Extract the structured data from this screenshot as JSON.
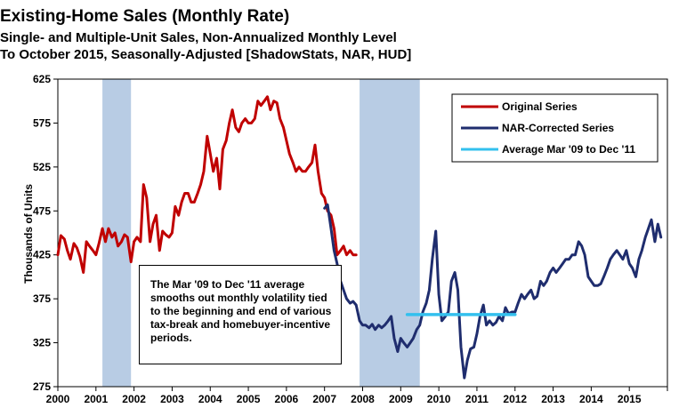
{
  "chart_data": {
    "type": "line",
    "title": "Existing-Home Sales (Monthly Rate)",
    "subtitle": [
      "Single- and Multiple-Unit Sales, Non-Annualized Monthly Level",
      "To October 2015, Seasonally-Adjusted [ShadowStats, NAR, HUD]"
    ],
    "xlabel": "",
    "ylabel": "Thousands of Units",
    "xlim": [
      2000,
      2016
    ],
    "ylim": [
      275,
      625
    ],
    "x_ticks": [
      "2000",
      "2001",
      "2002",
      "2003",
      "2004",
      "2005",
      "2006",
      "2007",
      "2008",
      "2009",
      "2010",
      "2011",
      "2012",
      "2013",
      "2014",
      "2015"
    ],
    "y_ticks": [
      "275",
      "325",
      "375",
      "425",
      "475",
      "525",
      "575",
      "625"
    ],
    "grid": false,
    "legend_position": "top-right",
    "recessions": [
      [
        2001.17,
        2001.92
      ],
      [
        2007.92,
        2009.5
      ]
    ],
    "series": [
      {
        "name": "Original Series",
        "color": "#c00000",
        "x": [
          2000.0,
          2000.08,
          2000.17,
          2000.25,
          2000.33,
          2000.42,
          2000.5,
          2000.58,
          2000.67,
          2000.75,
          2000.83,
          2000.92,
          2001.0,
          2001.08,
          2001.17,
          2001.25,
          2001.33,
          2001.42,
          2001.5,
          2001.58,
          2001.67,
          2001.75,
          2001.83,
          2001.92,
          2002.0,
          2002.08,
          2002.17,
          2002.25,
          2002.33,
          2002.42,
          2002.5,
          2002.58,
          2002.67,
          2002.75,
          2002.83,
          2002.92,
          2003.0,
          2003.08,
          2003.17,
          2003.25,
          2003.33,
          2003.42,
          2003.5,
          2003.58,
          2003.67,
          2003.75,
          2003.83,
          2003.92,
          2004.0,
          2004.08,
          2004.17,
          2004.25,
          2004.33,
          2004.42,
          2004.5,
          2004.58,
          2004.67,
          2004.75,
          2004.83,
          2004.92,
          2005.0,
          2005.08,
          2005.17,
          2005.25,
          2005.33,
          2005.42,
          2005.5,
          2005.58,
          2005.67,
          2005.75,
          2005.83,
          2005.92,
          2006.0,
          2006.08,
          2006.17,
          2006.25,
          2006.33,
          2006.42,
          2006.5,
          2006.58,
          2006.67,
          2006.75,
          2006.83,
          2006.92,
          2007.0,
          2007.08,
          2007.17,
          2007.25,
          2007.33,
          2007.42,
          2007.5,
          2007.58,
          2007.67,
          2007.75,
          2007.83
        ],
        "values": [
          425,
          447,
          443,
          430,
          420,
          438,
          433,
          423,
          405,
          440,
          435,
          430,
          425,
          438,
          455,
          440,
          455,
          445,
          450,
          435,
          440,
          448,
          445,
          417,
          440,
          445,
          440,
          505,
          490,
          440,
          460,
          470,
          430,
          452,
          448,
          445,
          450,
          480,
          470,
          485,
          495,
          495,
          485,
          485,
          495,
          505,
          520,
          560,
          540,
          520,
          535,
          500,
          545,
          555,
          575,
          590,
          570,
          565,
          575,
          580,
          575,
          575,
          580,
          600,
          595,
          600,
          605,
          590,
          600,
          598,
          580,
          570,
          555,
          540,
          530,
          520,
          525,
          520,
          520,
          525,
          530,
          550,
          520,
          495,
          490,
          475,
          470,
          455,
          425,
          430,
          435,
          425,
          430,
          425,
          425
        ]
      },
      {
        "name": "NAR-Corrected Series",
        "color": "#1f2d6e",
        "x": [
          2007.0,
          2007.08,
          2007.17,
          2007.25,
          2007.33,
          2007.42,
          2007.5,
          2007.58,
          2007.67,
          2007.75,
          2007.83,
          2007.92,
          2008.0,
          2008.08,
          2008.17,
          2008.25,
          2008.33,
          2008.42,
          2008.5,
          2008.58,
          2008.67,
          2008.75,
          2008.83,
          2008.92,
          2009.0,
          2009.08,
          2009.17,
          2009.25,
          2009.33,
          2009.42,
          2009.5,
          2009.58,
          2009.67,
          2009.75,
          2009.83,
          2009.92,
          2010.0,
          2010.08,
          2010.17,
          2010.25,
          2010.33,
          2010.42,
          2010.5,
          2010.58,
          2010.67,
          2010.75,
          2010.83,
          2010.92,
          2011.0,
          2011.08,
          2011.17,
          2011.25,
          2011.33,
          2011.42,
          2011.5,
          2011.58,
          2011.67,
          2011.75,
          2011.83,
          2011.92,
          2012.0,
          2012.08,
          2012.17,
          2012.25,
          2012.33,
          2012.42,
          2012.5,
          2012.58,
          2012.67,
          2012.75,
          2012.83,
          2012.92,
          2013.0,
          2013.08,
          2013.17,
          2013.25,
          2013.33,
          2013.42,
          2013.5,
          2013.58,
          2013.67,
          2013.75,
          2013.83,
          2013.92,
          2014.0,
          2014.08,
          2014.17,
          2014.25,
          2014.33,
          2014.42,
          2014.5,
          2014.58,
          2014.67,
          2014.75,
          2014.83,
          2014.92,
          2015.0,
          2015.08,
          2015.17,
          2015.25,
          2015.33,
          2015.42,
          2015.5,
          2015.58,
          2015.67,
          2015.75,
          2015.83
        ],
        "values": [
          478,
          482,
          455,
          430,
          415,
          395,
          385,
          375,
          370,
          372,
          368,
          350,
          345,
          345,
          342,
          346,
          340,
          345,
          342,
          345,
          350,
          355,
          330,
          315,
          330,
          325,
          320,
          325,
          330,
          340,
          345,
          360,
          370,
          385,
          420,
          452,
          380,
          350,
          355,
          360,
          395,
          405,
          385,
          320,
          285,
          305,
          318,
          320,
          335,
          355,
          368,
          345,
          350,
          345,
          348,
          355,
          350,
          365,
          358,
          360,
          360,
          370,
          380,
          375,
          380,
          385,
          375,
          378,
          395,
          390,
          395,
          405,
          410,
          405,
          410,
          415,
          420,
          420,
          425,
          425,
          440,
          435,
          425,
          400,
          395,
          390,
          390,
          392,
          400,
          410,
          420,
          425,
          430,
          425,
          420,
          430,
          415,
          410,
          400,
          420,
          430,
          445,
          455,
          465,
          440,
          460,
          445
        ]
      },
      {
        "name": "Average Mar '09 to Dec '11",
        "color": "#33c0ee",
        "x": [
          2009.17,
          2012.0
        ],
        "values": [
          357,
          357
        ]
      }
    ],
    "annotation": "The Mar '09 to Dec '11 average smooths out monthly volatility tied to the beginning  and end of various tax-break and homebuyer-incentive periods."
  }
}
